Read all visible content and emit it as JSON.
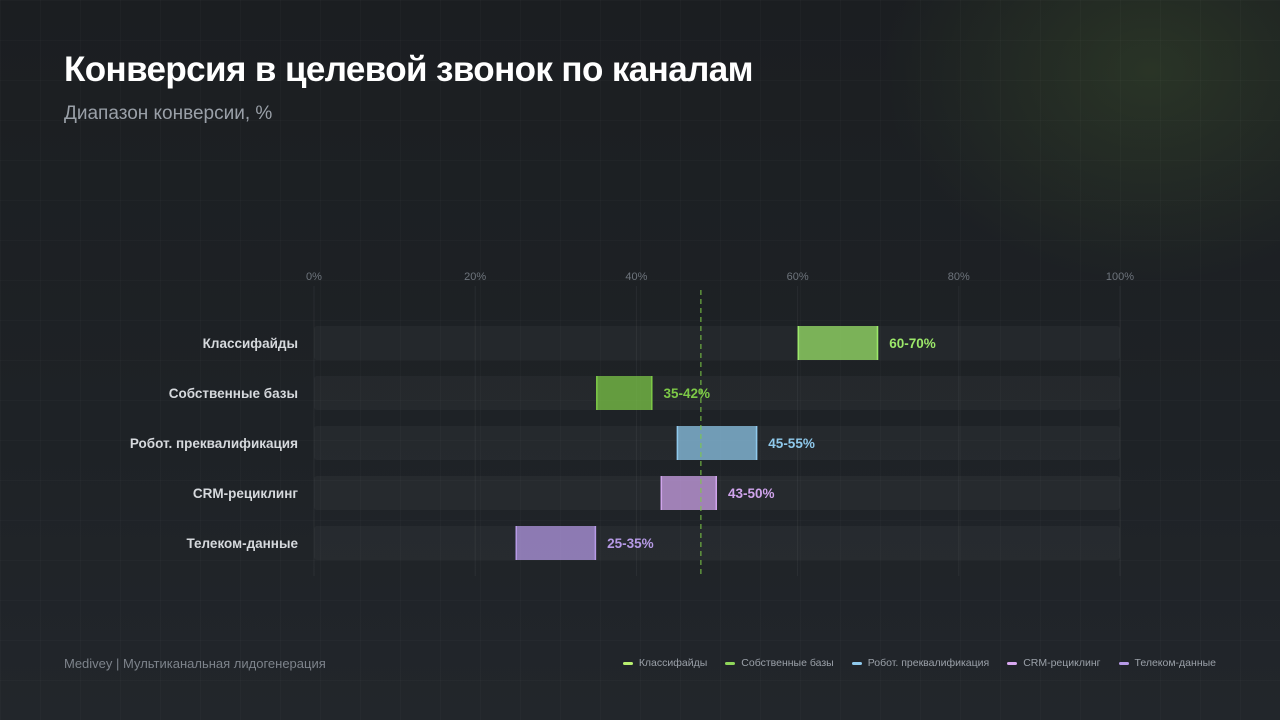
{
  "header": {
    "title": "Конверсия в целевой звонок по каналам",
    "subtitle": "Диапазон конверсии, %"
  },
  "footer": {
    "source": "Medivey | Мультиканальная лидогенерация"
  },
  "colors": {
    "Классифайды": "#9ce86a",
    "Собственные базы": "#7dc947",
    "Робот. преквалификация": "#8fc9ec",
    "CRM-рециклинг": "#d0a4ec",
    "Телеком-данные": "#b69ae6",
    "reference_line": "#7dc947"
  },
  "legend": [
    {
      "label": "Классифайды",
      "color": "#b8ef6f"
    },
    {
      "label": "Собственные базы",
      "color": "#8fd65a"
    },
    {
      "label": "Робот. преквалификация",
      "color": "#8fc9ec"
    },
    {
      "label": "CRM-рециклинг",
      "color": "#d9a8f0"
    },
    {
      "label": "Телеком-данные",
      "color": "#b69ae6"
    }
  ],
  "chart_data": {
    "type": "bar",
    "orientation": "horizontal-range",
    "title": "Конверсия в целевой звонок по каналам",
    "subtitle": "Диапазон конверсии, %",
    "xlim": [
      0,
      100
    ],
    "x_ticks": [
      "0%",
      "20%",
      "40%",
      "60%",
      "80%",
      "100%"
    ],
    "x_tick_values": [
      0,
      20,
      40,
      60,
      80,
      100
    ],
    "grid": true,
    "legend_position": "bottom-right",
    "reference_line": 48,
    "categories": [
      "Классифайды",
      "Собственные базы",
      "Робот. преквалификация",
      "CRM-рециклинг",
      "Телеком-данные"
    ],
    "ranges": [
      {
        "category": "Классифайды",
        "low": 60,
        "high": 70,
        "label": "60-70%"
      },
      {
        "category": "Собственные базы",
        "low": 35,
        "high": 42,
        "label": "35-42%"
      },
      {
        "category": "Робот. преквалификация",
        "low": 45,
        "high": 55,
        "label": "45-55%"
      },
      {
        "category": "CRM-рециклинг",
        "low": 43,
        "high": 50,
        "label": "43-50%"
      },
      {
        "category": "Телеком-данные",
        "low": 25,
        "high": 35,
        "label": "25-35%"
      }
    ]
  }
}
